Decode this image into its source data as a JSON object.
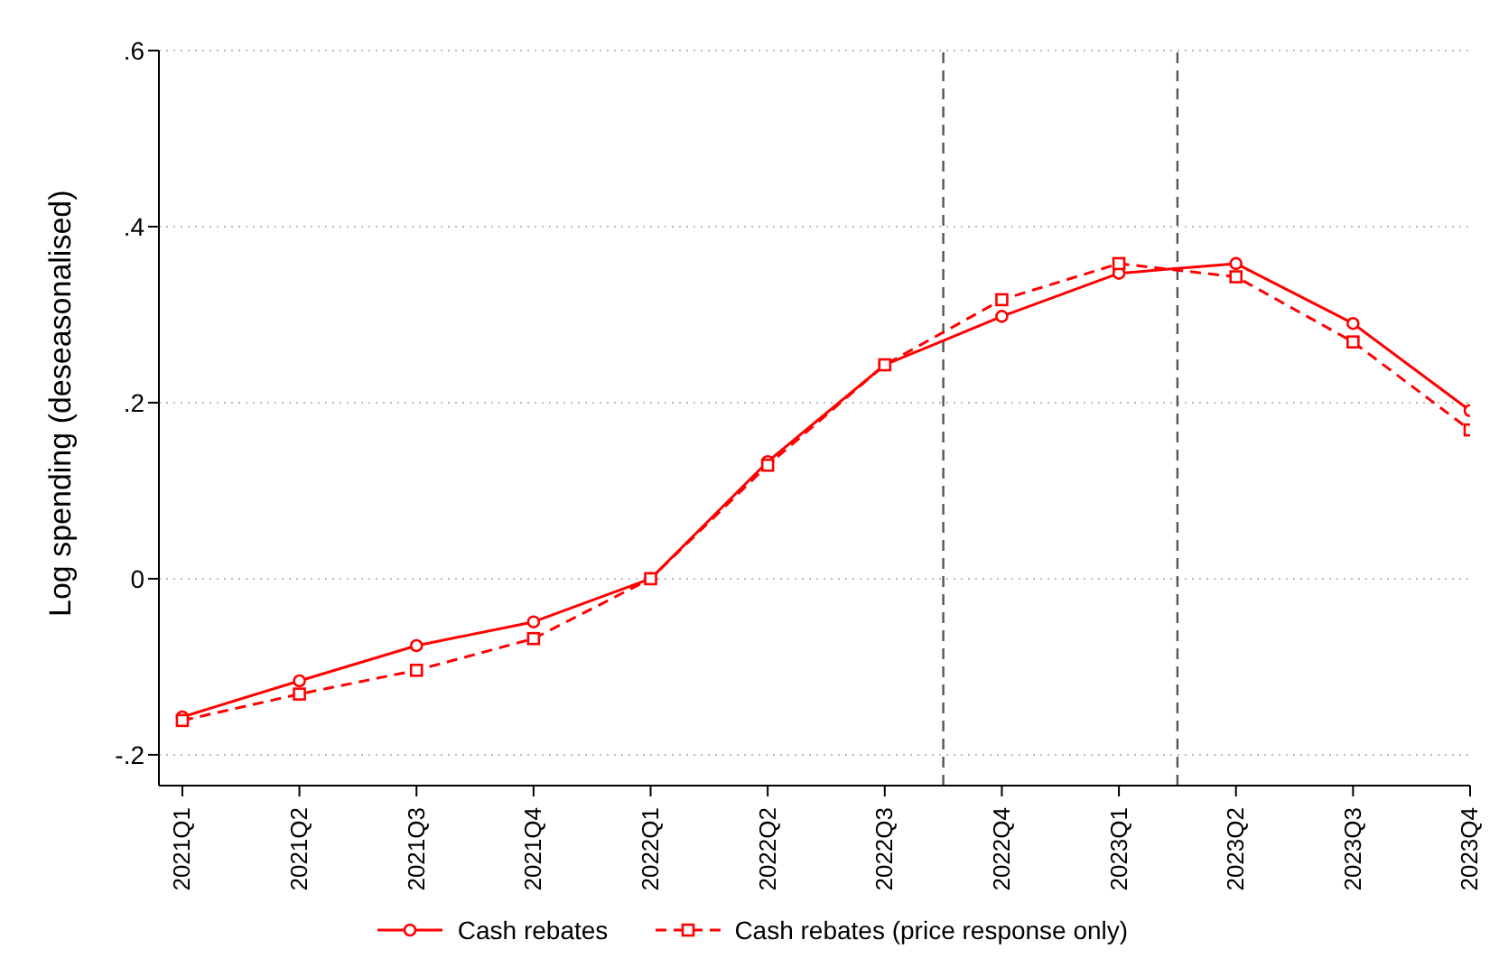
{
  "chart_data": {
    "type": "line",
    "ylabel": "Log spending (deseasonalised)",
    "categories": [
      "2021Q1",
      "2021Q2",
      "2021Q3",
      "2021Q4",
      "2022Q1",
      "2022Q2",
      "2022Q3",
      "2022Q4",
      "2023Q1",
      "2023Q2",
      "2023Q3",
      "2023Q4"
    ],
    "series": [
      {
        "name": "Cash rebates",
        "color": "#ff0000",
        "marker": "circle",
        "line_style": "solid",
        "values": [
          -0.157,
          -0.116,
          -0.076,
          -0.049,
          0,
          0.133,
          0.243,
          0.298,
          0.347,
          0.358,
          0.29,
          0.191
        ]
      },
      {
        "name": "Cash rebates (price response only)",
        "color": "#ff0000",
        "marker": "square",
        "line_style": "dashed",
        "values": [
          -0.161,
          -0.131,
          -0.104,
          -0.068,
          0,
          0.129,
          0.243,
          0.317,
          0.358,
          0.343,
          0.269,
          0.169
        ]
      }
    ],
    "ylim": [
      -0.235,
      0.6
    ],
    "yticks": [
      {
        "value": -0.2,
        "label": "-.2"
      },
      {
        "value": 0,
        "label": "0"
      },
      {
        "value": 0.2,
        "label": ".2"
      },
      {
        "value": 0.4,
        "label": ".4"
      },
      {
        "value": 0.6,
        "label": ".6"
      }
    ],
    "grid": "y",
    "legend": "bottom"
  }
}
